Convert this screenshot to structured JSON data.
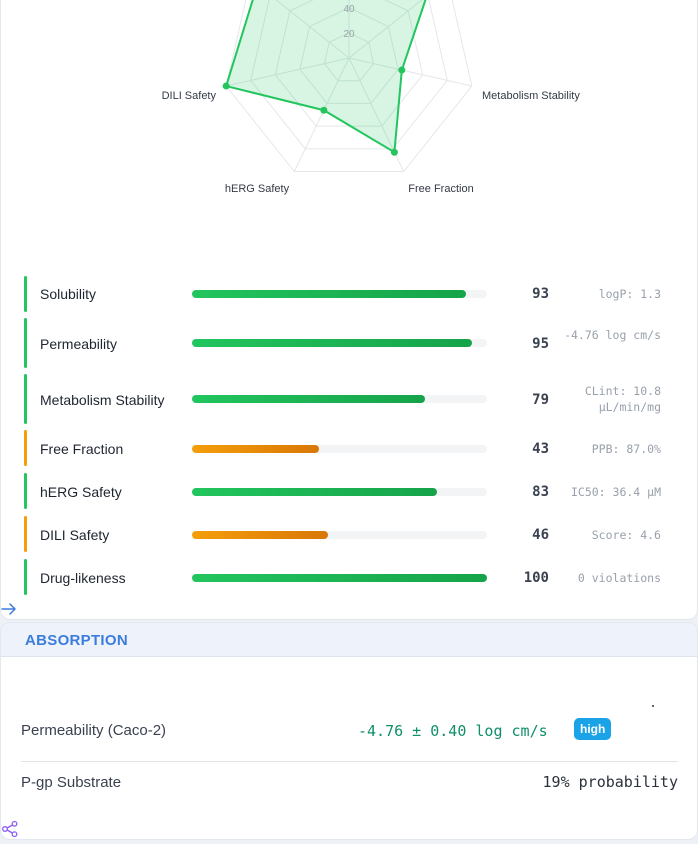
{
  "radar": {
    "axes": [
      "Solubility",
      "Permeability",
      "Metabolism Stability",
      "Free Fraction",
      "hERG Safety",
      "DILI Safety",
      "Drug-likeness"
    ],
    "visible_axis_labels": {
      "metabolism": "Metabolism Stability",
      "free_fraction": "Free Fraction",
      "herg": "hERG Safety",
      "dili": "DILI Safety"
    },
    "tick_labels": [
      "20",
      "40"
    ],
    "range": [
      0,
      100
    ],
    "values": [
      93,
      95,
      79,
      43,
      83,
      46,
      100
    ],
    "color": "#22c55e",
    "fill": "rgba(34,197,94,0.18)"
  },
  "metrics": [
    {
      "name": "Solubility",
      "score": 93,
      "fraction": 0.93,
      "detail": "logP: 1.3",
      "status": "good"
    },
    {
      "name": "Permeability",
      "score": 95,
      "fraction": 0.95,
      "detail": "-4.76 log cm/s",
      "status": "good"
    },
    {
      "name": "Metabolism Stability",
      "score": 79,
      "fraction": 0.79,
      "detail": "CLint: 10.8 µL/min/mg",
      "status": "good"
    },
    {
      "name": "Free Fraction",
      "score": 43,
      "fraction": 0.43,
      "detail": "PPB: 87.0%",
      "status": "warn"
    },
    {
      "name": "hERG Safety",
      "score": 83,
      "fraction": 0.83,
      "detail": "IC50: 36.4 µM",
      "status": "good"
    },
    {
      "name": "DILI Safety",
      "score": 46,
      "fraction": 0.46,
      "detail": "Score: 4.6",
      "status": "warn"
    },
    {
      "name": "Drug-likeness",
      "score": 100,
      "fraction": 1.0,
      "detail": "0 violations",
      "status": "good"
    }
  ],
  "colors": {
    "good": "#22c55e",
    "good_dark": "#16a34a",
    "warn": "#f59e0b",
    "warn_dark": "#d97706",
    "accent": "#3b7ddd",
    "badge": "#1aa3e6",
    "value_green": "#0f8f6a"
  },
  "absorption": {
    "title": "ABSORPTION",
    "permeability": {
      "label": "Permeability (Caco-2)",
      "value": "-4.76 ± 0.40 log cm/s",
      "badge": "high"
    },
    "pgp": {
      "label": "P-gp Substrate",
      "value": "19% probability"
    }
  },
  "icons": {
    "expand": "arrow-right-icon",
    "share": "share-icon"
  }
}
